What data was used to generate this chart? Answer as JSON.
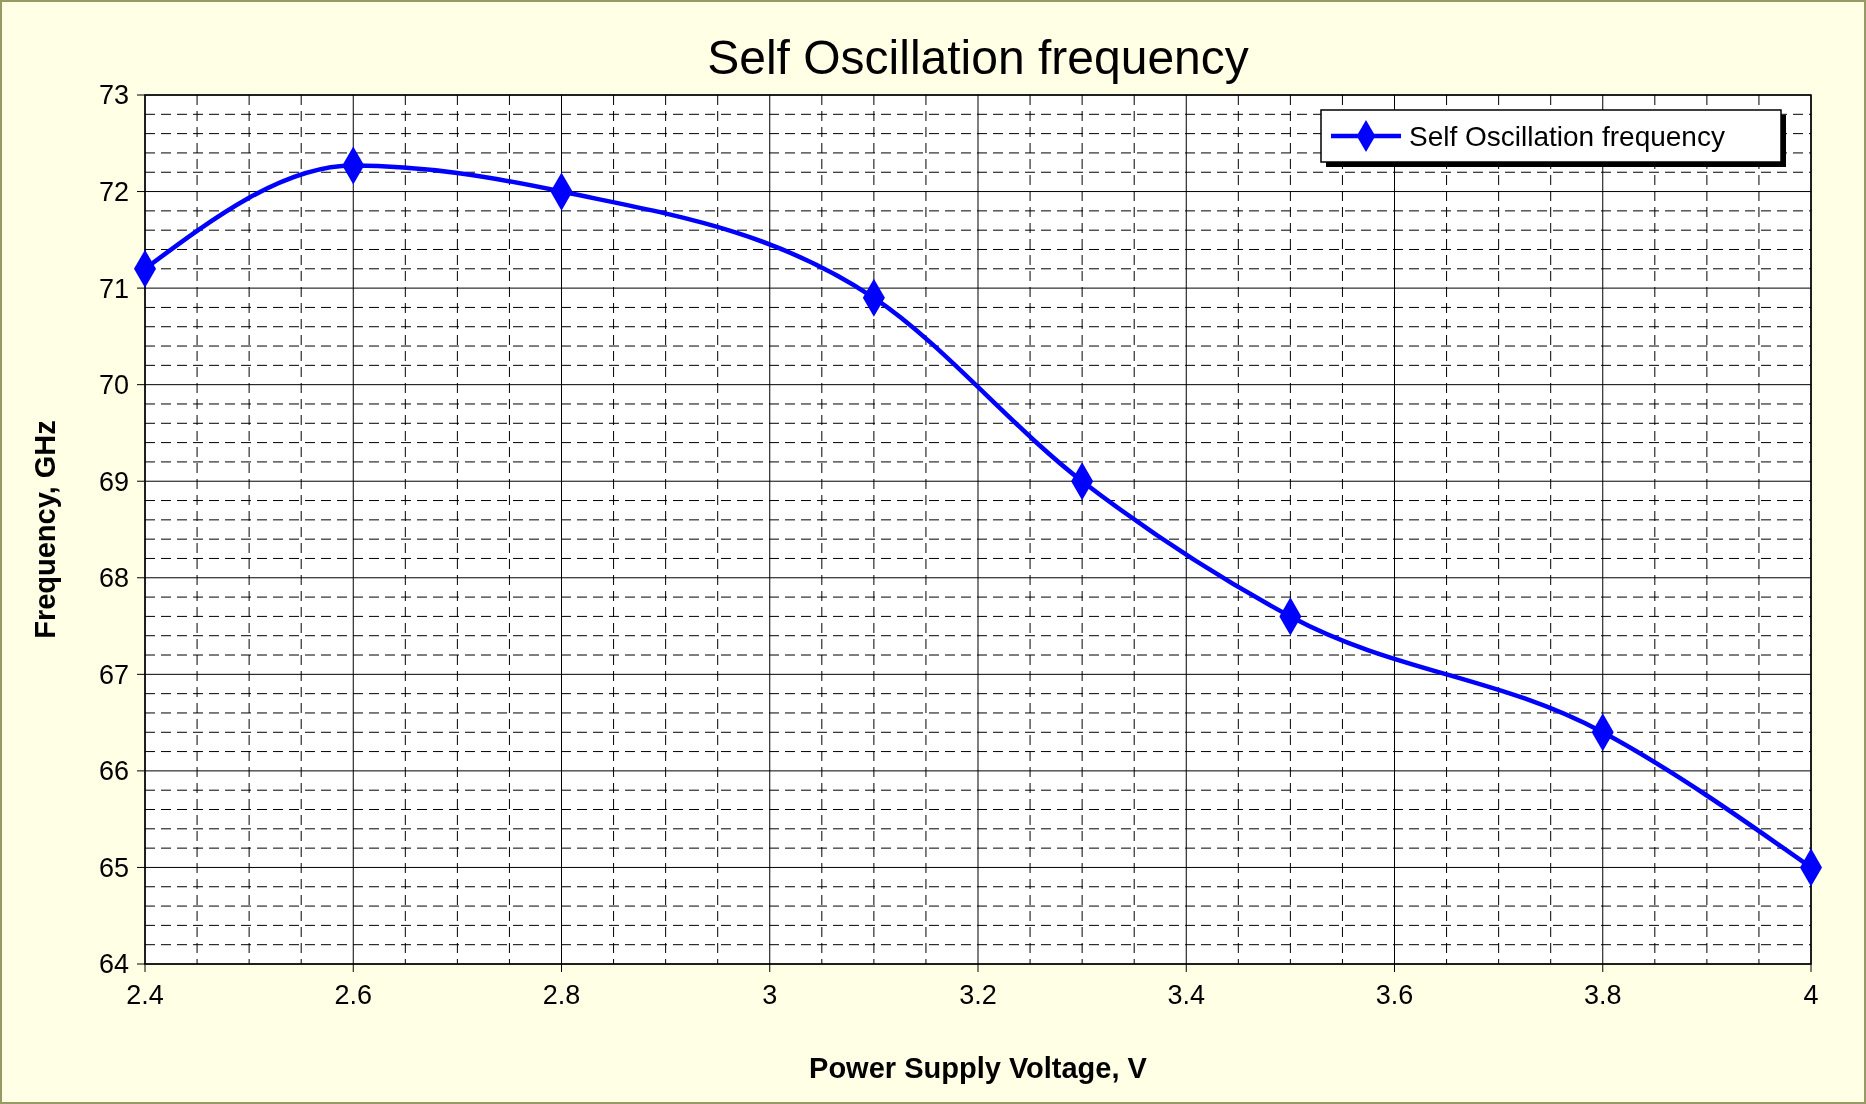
{
  "chart_data": {
    "type": "line",
    "title": "Self Oscillation frequency",
    "xlabel": "Power Supply Voltage, V",
    "ylabel": "Frequency, GHz",
    "x": [
      2.4,
      2.6,
      2.8,
      3.1,
      3.3,
      3.5,
      3.8,
      4.0
    ],
    "series": [
      {
        "name": "Self Oscillation frequency",
        "color": "#0000ff",
        "values": [
          71.2,
          72.27,
          72.0,
          70.9,
          69.0,
          67.6,
          66.4,
          65.0
        ]
      }
    ],
    "xlim": [
      2.4,
      4
    ],
    "xticks": [
      2.4,
      2.6,
      2.8,
      3,
      3.2,
      3.4,
      3.6,
      3.8,
      4
    ],
    "ylim": [
      64,
      73
    ],
    "yticks": [
      64,
      65,
      66,
      67,
      68,
      69,
      70,
      71,
      72,
      73
    ],
    "grid": true,
    "legend": "top right",
    "marker": "diamond",
    "line_style": "solid"
  }
}
